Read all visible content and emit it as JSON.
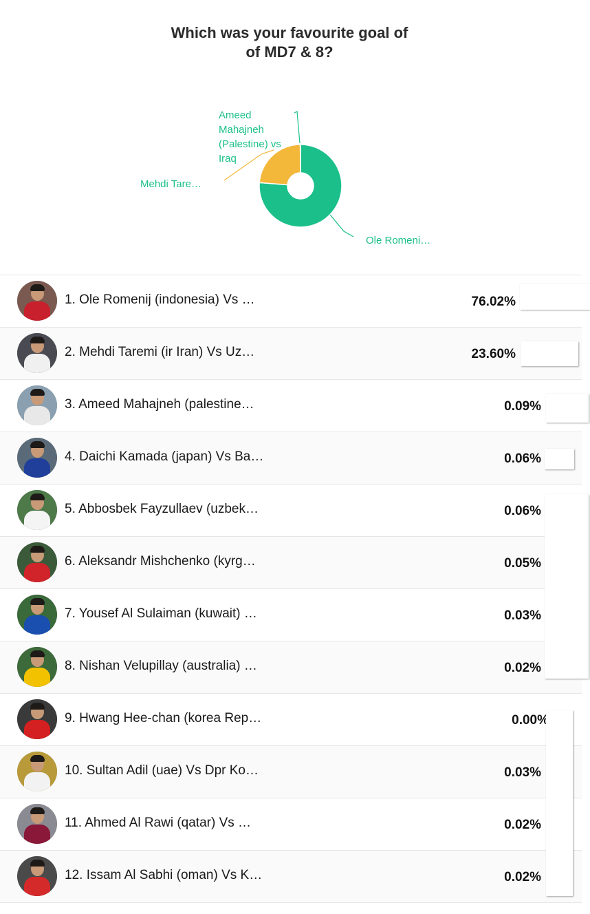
{
  "poll": {
    "title_line1": "Which was your favourite goal of",
    "title_line2": "of MD7 & 8?"
  },
  "chart_data": {
    "type": "pie",
    "style": "donut",
    "slices": [
      {
        "label": "Ole Romeni…",
        "value": 76.02,
        "color": "#1bbf8a"
      },
      {
        "label": "Mehdi Tare…",
        "value": 23.6,
        "color": "#f3b73a"
      },
      {
        "label": "Ameed Mahajneh (Palestine) vs Iraq",
        "value": 0.09,
        "color": "#1bbf8a"
      }
    ],
    "label_lines": {
      "ameed": [
        "Ameed",
        "Mahajneh",
        "(Palestine) vs",
        "Iraq"
      ]
    }
  },
  "options": [
    {
      "name": "1. Ole Romenij (indonesia) Vs …",
      "percent": "76.02%",
      "body_color": "#c8202c",
      "bg_color": "#7a5a50"
    },
    {
      "name": "2. Mehdi Taremi (ir Iran) Vs Uz…",
      "percent": "23.60%",
      "body_color": "#f0f0f0",
      "bg_color": "#4a4a52"
    },
    {
      "name": "3. Ameed Mahajneh (palestine…",
      "percent": "0.09%",
      "body_color": "#e8e8e8",
      "bg_color": "#8aa0b0"
    },
    {
      "name": "4. Daichi Kamada (japan) Vs Ba…",
      "percent": "0.06%",
      "body_color": "#1f3f9a",
      "bg_color": "#5a6a78"
    },
    {
      "name": "5. Abbosbek Fayzullaev (uzbek…",
      "percent": "0.06%",
      "body_color": "#f4f4f4",
      "bg_color": "#4e7a4a"
    },
    {
      "name": "6. Aleksandr Mishchenko (kyrg…",
      "percent": "0.05%",
      "body_color": "#d0232a",
      "bg_color": "#3a5a3a"
    },
    {
      "name": "7. Yousef Al Sulaiman (kuwait) …",
      "percent": "0.03%",
      "body_color": "#1a4fb0",
      "bg_color": "#3a6a3a"
    },
    {
      "name": "8. Nishan Velupillay (australia) …",
      "percent": "0.02%",
      "body_color": "#f2c200",
      "bg_color": "#3d6a3a"
    },
    {
      "name": "9. Hwang Hee-chan (korea Rep…",
      "percent": "0.00%",
      "body_color": "#d42020",
      "bg_color": "#3a3a3a"
    },
    {
      "name": "10. Sultan Adil (uae) Vs Dpr Ko…",
      "percent": "0.03%",
      "body_color": "#f2f2f2",
      "bg_color": "#b89a3a"
    },
    {
      "name": "11. Ahmed Al Rawi (qatar) Vs …",
      "percent": "0.02%",
      "body_color": "#8a1838",
      "bg_color": "#8a8a92"
    },
    {
      "name": "12. Issam Al Sabhi (oman) Vs K…",
      "percent": "0.02%",
      "body_color": "#d42a2a",
      "bg_color": "#4a4a4a"
    }
  ]
}
